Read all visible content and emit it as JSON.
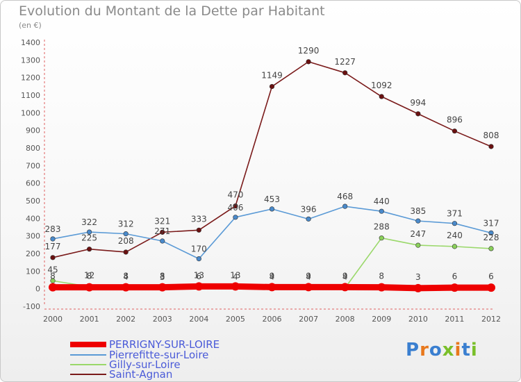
{
  "title": "Evolution du Montant de la Dette par Habitant",
  "unit": "(en €)",
  "brand": {
    "text": "Proxiti",
    "colors": [
      "#3a7fd0",
      "#e8781c",
      "#3a7fd0",
      "#7abf2a",
      "#e8781c",
      "#3a7fd0",
      "#7abf2a"
    ]
  },
  "chart_data": {
    "type": "line",
    "title": "Evolution du Montant de la Dette par Habitant",
    "ylabel": "(en €)",
    "xlabel": "",
    "ylim": [
      -100,
      1400
    ],
    "yticks": [
      -100,
      0,
      100,
      200,
      300,
      400,
      500,
      600,
      700,
      800,
      900,
      1000,
      1100,
      1200,
      1300,
      1400
    ],
    "grid": false,
    "legend_position": "bottom-left",
    "x": [
      "2000",
      "2001",
      "2002",
      "2003",
      "2004",
      "2005",
      "2006",
      "2007",
      "2008",
      "2009",
      "2010",
      "2011",
      "2012"
    ],
    "series": [
      {
        "name": "PERRIGNY-SUR-LOIRE",
        "color": "#ee0000",
        "values": [
          8,
          8,
          8,
          8,
          13,
          13,
          9,
          9,
          9,
          8,
          3,
          6,
          6
        ]
      },
      {
        "name": "Pierrefitte-sur-Loire",
        "color": "#5a9ad6",
        "values": [
          283,
          322,
          312,
          271,
          170,
          406,
          453,
          396,
          468,
          440,
          385,
          371,
          317
        ]
      },
      {
        "name": "Gilly-sur-Loire",
        "color": "#9ad86a",
        "values": [
          45,
          12,
          4,
          3,
          6,
          4,
          4,
          4,
          4,
          288,
          247,
          240,
          228
        ]
      },
      {
        "name": "Saint-Agnan",
        "color": "#7a1a1a",
        "values": [
          177,
          225,
          208,
          321,
          333,
          470,
          1149,
          1290,
          1227,
          1092,
          994,
          896,
          808
        ]
      }
    ]
  }
}
